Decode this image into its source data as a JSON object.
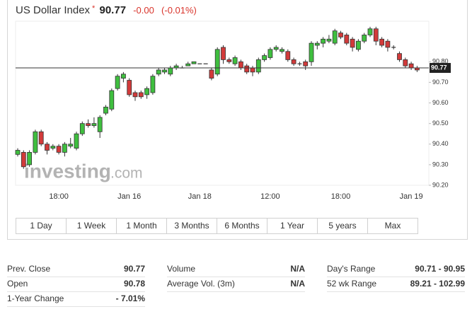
{
  "header": {
    "title": "US Dollar Index",
    "star": "*",
    "price": "90.77",
    "change": "-0.00",
    "change_pct": "(-0.01%)"
  },
  "chart_data": {
    "type": "candlestick",
    "categories": [
      null,
      null,
      null,
      null,
      null,
      null,
      null,
      "18:00",
      null,
      null,
      null,
      null,
      null,
      null,
      null,
      null,
      null,
      null,
      null,
      "Jan 16",
      null,
      null,
      null,
      null,
      null,
      null,
      null,
      null,
      null,
      null,
      null,
      "Jan 18",
      null,
      null,
      null,
      null,
      null,
      null,
      null,
      null,
      null,
      null,
      null,
      "12:00",
      null,
      null,
      null,
      null,
      null,
      null,
      null,
      null,
      null,
      null,
      null,
      "18:00",
      null,
      null,
      null,
      null,
      null,
      null,
      null,
      null,
      null,
      null,
      null,
      "Jan 19",
      null
    ],
    "open": [
      90.35,
      90.36,
      90.3,
      90.36,
      90.46,
      90.4,
      90.38,
      90.39,
      90.36,
      90.39,
      90.38,
      90.45,
      90.5,
      90.49,
      90.46,
      90.55,
      90.57,
      90.67,
      90.72,
      90.71,
      90.65,
      90.65,
      90.64,
      90.65,
      90.74,
      90.75,
      90.74,
      90.77,
      90.77,
      90.78,
      90.79,
      90.79,
      90.79,
      90.76,
      90.74,
      90.87,
      90.81,
      90.79,
      90.8,
      90.78,
      90.77,
      90.75,
      90.81,
      90.82,
      90.86,
      90.85,
      90.85,
      90.81,
      90.79,
      90.8,
      90.8,
      90.88,
      90.89,
      90.9,
      90.89,
      90.94,
      90.93,
      90.91,
      90.86,
      90.9,
      90.93,
      90.96,
      90.91,
      90.9,
      90.87,
      90.84,
      90.81,
      90.79,
      90.77
    ],
    "high": [
      90.38,
      90.37,
      90.37,
      90.47,
      90.47,
      90.41,
      90.4,
      90.4,
      90.41,
      90.43,
      90.46,
      90.51,
      90.52,
      90.53,
      90.54,
      90.59,
      90.67,
      90.74,
      90.75,
      90.72,
      90.66,
      90.66,
      90.68,
      90.74,
      90.77,
      90.77,
      90.78,
      90.79,
      90.78,
      90.8,
      90.8,
      90.79,
      90.79,
      90.77,
      90.87,
      90.88,
      90.82,
      90.83,
      90.81,
      90.79,
      90.78,
      90.82,
      90.84,
      90.87,
      90.88,
      90.87,
      90.86,
      90.82,
      90.8,
      90.81,
      90.9,
      90.9,
      90.92,
      90.93,
      90.96,
      90.95,
      90.94,
      90.92,
      90.91,
      90.94,
      90.97,
      90.97,
      90.92,
      90.91,
      90.88,
      90.85,
      90.82,
      90.8,
      90.78
    ],
    "low": [
      90.34,
      90.28,
      90.29,
      90.35,
      90.39,
      90.35,
      90.37,
      90.35,
      90.34,
      90.38,
      90.37,
      90.44,
      90.48,
      90.48,
      90.43,
      90.54,
      90.56,
      90.66,
      90.7,
      90.63,
      90.61,
      90.62,
      90.62,
      90.64,
      90.73,
      90.74,
      90.73,
      90.76,
      90.77,
      90.78,
      90.79,
      90.79,
      90.79,
      90.71,
      90.73,
      90.79,
      90.79,
      90.78,
      90.76,
      90.74,
      90.73,
      90.74,
      90.8,
      90.81,
      90.85,
      90.84,
      90.8,
      90.78,
      90.78,
      90.76,
      90.78,
      90.86,
      90.87,
      90.89,
      90.88,
      90.91,
      90.88,
      90.85,
      90.85,
      90.89,
      90.92,
      90.88,
      90.87,
      90.85,
      90.86,
      90.8,
      90.77,
      90.76,
      90.75
    ],
    "close": [
      90.37,
      90.29,
      90.36,
      90.46,
      90.4,
      90.37,
      90.39,
      90.36,
      90.4,
      90.4,
      90.45,
      90.5,
      90.49,
      90.5,
      90.53,
      90.58,
      90.66,
      90.73,
      90.74,
      90.64,
      90.63,
      90.63,
      90.67,
      90.73,
      90.76,
      90.76,
      90.77,
      90.78,
      90.77,
      90.79,
      90.8,
      90.79,
      90.79,
      90.72,
      90.86,
      90.81,
      90.8,
      90.82,
      90.77,
      90.75,
      90.75,
      90.81,
      90.83,
      90.86,
      90.87,
      90.86,
      90.81,
      90.79,
      90.79,
      90.78,
      90.89,
      90.89,
      90.91,
      90.91,
      90.95,
      90.92,
      90.89,
      90.87,
      90.9,
      90.93,
      90.96,
      90.9,
      90.88,
      90.87,
      90.87,
      90.81,
      90.78,
      90.77,
      90.76
    ],
    "up_color": "#3fbf3f",
    "down_color": "#d23a3a",
    "ylim": [
      90.2,
      90.99
    ],
    "yticks": [
      {
        "value": 90.2,
        "label": "90.20"
      },
      {
        "value": 90.3,
        "label": "90.30"
      },
      {
        "value": 90.4,
        "label": "90.40"
      },
      {
        "value": 90.5,
        "label": "90.50"
      },
      {
        "value": 90.6,
        "label": "90.60"
      },
      {
        "value": 90.7,
        "label": "90.70"
      },
      {
        "value": 90.8,
        "label": "90.80"
      }
    ],
    "grid": false,
    "last_price": 90.77,
    "last_price_label": "90.77",
    "watermark": "investing",
    "watermark_suffix": ".com"
  },
  "range_buttons": [
    "1 Day",
    "1 Week",
    "1 Month",
    "3 Months",
    "6 Months",
    "1 Year",
    "5 years",
    "Max"
  ],
  "stats": [
    [
      [
        "Prev. Close",
        "90.77"
      ],
      [
        "Open",
        "90.78"
      ],
      [
        "1-Year Change",
        "- 7.01%"
      ]
    ],
    [
      [
        "Volume",
        "N/A"
      ],
      [
        "Average Vol. (3m)",
        "N/A"
      ]
    ],
    [
      [
        "Day's Range",
        "90.71 - 90.95"
      ],
      [
        "52 wk Range",
        "89.21 - 102.99"
      ]
    ]
  ]
}
